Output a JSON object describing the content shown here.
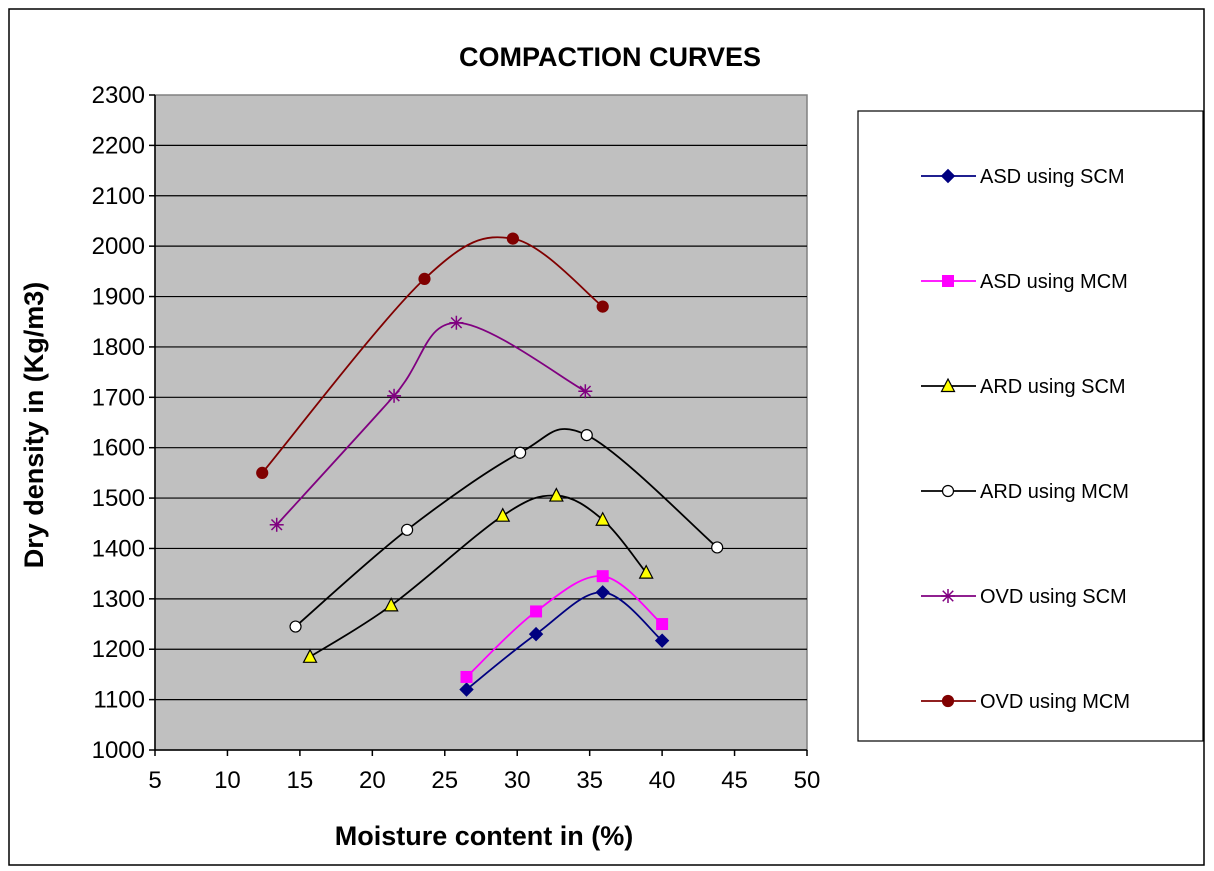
{
  "chart_data": {
    "type": "line",
    "title": "COMPACTION CURVES",
    "xlabel": "Moisture content in (%)",
    "ylabel": "Dry density in (Kg/m3)",
    "xlim": [
      5,
      50
    ],
    "ylim": [
      1000,
      2300
    ],
    "xticks": [
      5,
      10,
      15,
      20,
      25,
      30,
      35,
      40,
      45,
      50
    ],
    "yticks": [
      1000,
      1100,
      1200,
      1300,
      1400,
      1500,
      1600,
      1700,
      1800,
      1900,
      2000,
      2100,
      2200,
      2300
    ],
    "grid": "horizontal",
    "plot_background": "#c0c0c0",
    "legend_position": "right",
    "series": [
      {
        "name": "ASD using SCM",
        "color": "#000080",
        "marker": "diamond",
        "marker_fill": "#000080",
        "x": [
          26.5,
          31.3,
          35.9,
          40.0
        ],
        "y": [
          1120,
          1230,
          1313,
          1217
        ]
      },
      {
        "name": "ASD using MCM",
        "color": "#ff00ff",
        "marker": "square",
        "marker_fill": "#ff00ff",
        "x": [
          26.5,
          31.3,
          35.9,
          40.0
        ],
        "y": [
          1145,
          1275,
          1345,
          1250
        ]
      },
      {
        "name": "ARD using SCM",
        "color": "#000000",
        "marker": "triangle",
        "marker_fill": "#ffff00",
        "x": [
          15.7,
          21.3,
          29.0,
          32.7,
          35.9,
          38.9
        ],
        "y": [
          1185,
          1287,
          1465,
          1505,
          1457,
          1352
        ]
      },
      {
        "name": "ARD using MCM",
        "color": "#000000",
        "marker": "circle",
        "marker_fill": "#ffffff",
        "x": [
          14.7,
          22.4,
          30.2,
          34.8,
          43.8
        ],
        "y": [
          1245,
          1437,
          1590,
          1625,
          1402
        ]
      },
      {
        "name": "OVD using SCM",
        "color": "#800080",
        "marker": "star",
        "marker_fill": "#800080",
        "x": [
          13.4,
          21.5,
          25.8,
          34.7
        ],
        "y": [
          1447,
          1703,
          1848,
          1712
        ]
      },
      {
        "name": "OVD using MCM",
        "color": "#800000",
        "marker": "circle",
        "marker_fill": "#800000",
        "x": [
          12.4,
          23.6,
          29.7,
          35.9
        ],
        "y": [
          1550,
          1935,
          2015,
          1880
        ]
      }
    ]
  }
}
